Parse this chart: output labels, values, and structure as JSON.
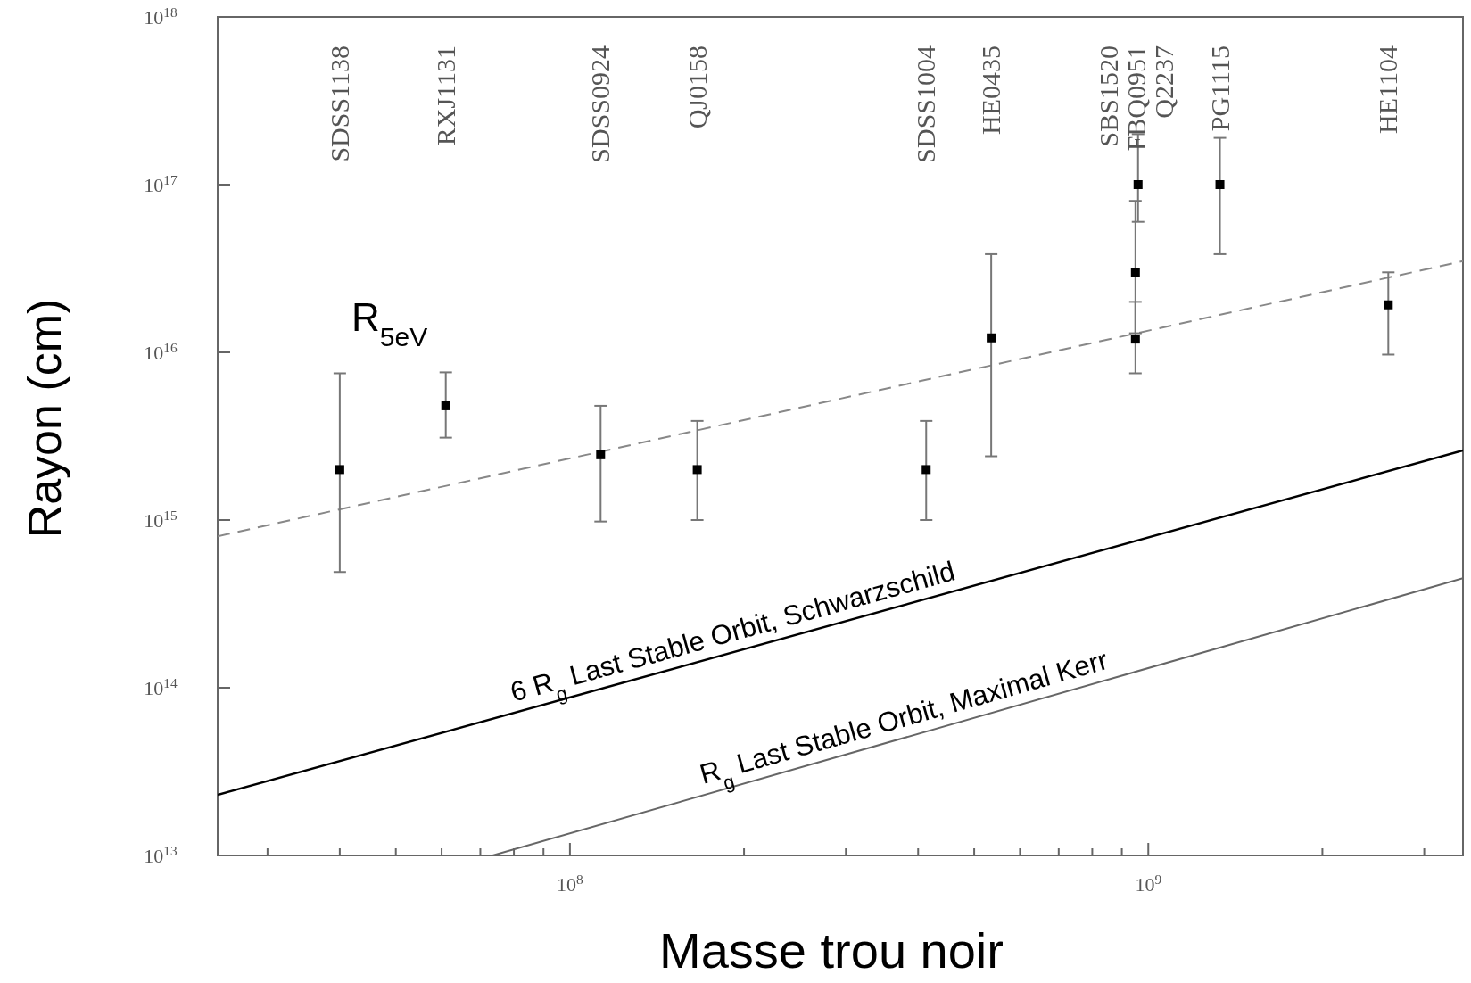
{
  "chart_data": {
    "type": "scatter",
    "log": "xy",
    "xlabel": "Masse trou noir",
    "ylabel": "Rayon (cm)",
    "grid": false,
    "xlim": [
      24600000.0,
      3500000000.0
    ],
    "ylim": [
      10000000000000.0,
      1e+18
    ],
    "xticks": [
      {
        "value": 30000000.0,
        "label": null
      },
      {
        "value": 40000000.0,
        "label": null
      },
      {
        "value": 50000000.0,
        "label": null
      },
      {
        "value": 60000000.0,
        "label": null
      },
      {
        "value": 70000000.0,
        "label": null
      },
      {
        "value": 80000000.0,
        "label": null
      },
      {
        "value": 90000000.0,
        "label": null
      },
      {
        "value": 100000000.0,
        "label": "10$^{8}$"
      },
      {
        "value": 200000000.0,
        "label": null
      },
      {
        "value": 300000000.0,
        "label": null
      },
      {
        "value": 400000000.0,
        "label": null
      },
      {
        "value": 500000000.0,
        "label": null
      },
      {
        "value": 600000000.0,
        "label": null
      },
      {
        "value": 700000000.0,
        "label": null
      },
      {
        "value": 800000000.0,
        "label": null
      },
      {
        "value": 900000000.0,
        "label": null
      },
      {
        "value": 1000000000.0,
        "label": "10$^{9}$"
      },
      {
        "value": 2000000000.0,
        "label": null
      },
      {
        "value": 3000000000.0,
        "label": null
      }
    ],
    "yticks": [
      {
        "value": 10000000000000.0,
        "label": "10$^{13}$"
      },
      {
        "value": 100000000000000.0,
        "label": "10$^{14}$"
      },
      {
        "value": 1000000000000000.0,
        "label": "10$^{15}$"
      },
      {
        "value": 1e+16,
        "label": "10$^{16}$"
      },
      {
        "value": 1e+17,
        "label": "10$^{17}$"
      },
      {
        "value": 1e+18,
        "label": "10$^{18}$"
      }
    ],
    "series": [
      {
        "color": "#000000",
        "marker": "square",
        "x": [
          40000000.0,
          61000000.0,
          113000000.0,
          166000000.0,
          413000000.0,
          535000000.0,
          950000000.0,
          950000000.0,
          960000000.0,
          1330000000.0,
          2600000000.0
        ],
        "values": [
          2000000000000000.0,
          4800000000000000.0,
          2450000000000000.0,
          2000000000000000.0,
          2000000000000000.0,
          1.22e+16,
          1.2e+16,
          3e+16,
          1e+17,
          1e+17,
          1.92e+16
        ],
        "errors": [
          [
            490000000000000.0,
            7500000000000000.0
          ],
          [
            3100000000000000.0,
            7600000000000000.0
          ],
          [
            980000000000000.0,
            4800000000000000.0
          ],
          [
            1000000000000000.0,
            3900000000000000.0
          ],
          [
            1000000000000000.0,
            3900000000000000.0
          ],
          [
            2400000000000000.0,
            3.85e+16
          ],
          [
            7500000000000000.0,
            2e+16
          ],
          [
            1.3e+16,
            8e+16
          ],
          [
            6e+16,
            2e+17
          ],
          [
            3.85e+16,
            1.9e+17
          ],
          [
            9700000000000000.0,
            3e+16
          ]
        ]
      },
      {
        "type": "line",
        "color": "#888888",
        "line_style": "dashed",
        "x": [
          24600000.0,
          3500000000.0
        ],
        "values": [
          800000000000000.0,
          3.5e+16
        ]
      },
      {
        "type": "line",
        "color": "#000000",
        "line_style": "solid",
        "name": "6 R$_{g}$ Last Stable Orbit, Schwarzschild",
        "x": [
          24600000.0,
          3500000000.0
        ],
        "values": [
          23000000000000.0,
          2600000000000000.0
        ]
      },
      {
        "type": "line",
        "color": "#666666",
        "line_style": "solid",
        "name": "R$_{g}$ Last Stable Orbit, Maximal Kerr",
        "x": [
          73500000.0,
          3500000000.0
        ],
        "values": [
          10000000000000.0,
          450000000000000.0
        ]
      }
    ],
    "annotations": [
      "SDSS1138",
      "RXJ1131",
      "SDSS0924",
      "QJ0158",
      "SDSS1004",
      "HE0435",
      "SBS1520",
      "FBQ0951",
      "Q2237",
      "PG1115",
      "HE1104",
      "R$_{5eV}$"
    ]
  }
}
